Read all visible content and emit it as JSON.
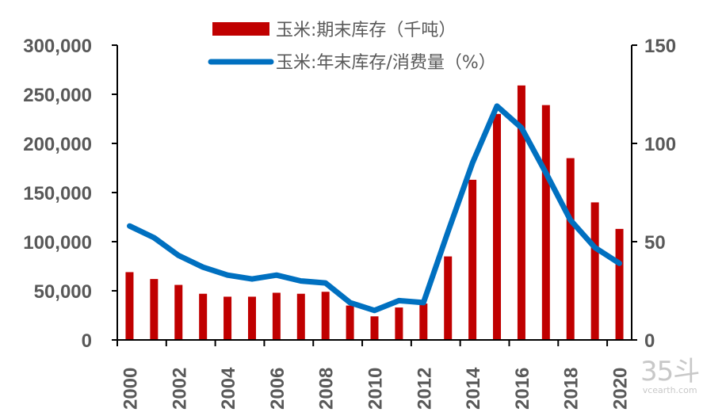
{
  "chart_data": {
    "type": "bar+line",
    "title": "",
    "categories": [
      2000,
      2001,
      2002,
      2003,
      2004,
      2005,
      2006,
      2007,
      2008,
      2009,
      2010,
      2011,
      2012,
      2013,
      2014,
      2015,
      2016,
      2017,
      2018,
      2019,
      2020
    ],
    "x_tick_labels": [
      "2000",
      "2002",
      "2004",
      "2006",
      "2008",
      "2010",
      "2012",
      "2014",
      "2016",
      "2018",
      "2020"
    ],
    "series": [
      {
        "name": "玉米:期末库存（千吨）",
        "type": "bar",
        "axis": "left",
        "color": "#C00000",
        "values": [
          69000,
          62000,
          56000,
          47000,
          44000,
          44000,
          48000,
          47000,
          49000,
          35000,
          24000,
          33000,
          37000,
          85000,
          163000,
          230000,
          259000,
          239000,
          185000,
          140000,
          113000
        ]
      },
      {
        "name": "玉米:年末库存/消费量（%）",
        "type": "line",
        "axis": "right",
        "color": "#0070C0",
        "values": [
          58,
          52,
          43,
          37,
          33,
          31,
          33,
          30,
          29,
          19,
          15,
          20,
          19,
          55,
          90,
          119,
          108,
          85,
          61,
          47,
          39
        ]
      }
    ],
    "y_left": {
      "label": "",
      "ylim": [
        0,
        300000
      ],
      "ticks": [
        "0",
        "50,000",
        "100,000",
        "150,000",
        "200,000",
        "250,000",
        "300,000"
      ]
    },
    "y_right": {
      "label": "",
      "ylim": [
        0,
        150
      ],
      "ticks": [
        "0",
        "50",
        "100",
        "150"
      ]
    },
    "xlabel": "",
    "grid": false,
    "legend_position": "top"
  },
  "legend": {
    "bar_label": "玉米:期末库存（千吨）",
    "line_label": "玉米:年末库存/消费量（%）"
  },
  "watermark": {
    "big": "35斗",
    "small": "vcearth.com"
  }
}
